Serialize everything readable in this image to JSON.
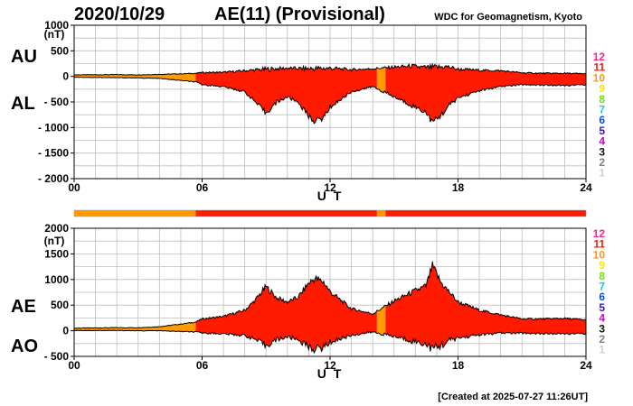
{
  "header": {
    "date": "2020/10/29",
    "title": "AE(11) (Provisional)",
    "source": "WDC for Geomagnetism, Kyoto"
  },
  "footer": {
    "created": "[Created at 2025-07-27 11:26UT]"
  },
  "colors": {
    "fill_main": "#ff2a10",
    "outline": "#000000",
    "grid": "#bdbdbd"
  },
  "station_legend": [
    {
      "label": "12",
      "color": "#ff1f8f"
    },
    {
      "label": "11",
      "color": "#ff1a00"
    },
    {
      "label": "10",
      "color": "#ff9a00"
    },
    {
      "label": "9",
      "color": "#ffe800"
    },
    {
      "label": "8",
      "color": "#6ee800"
    },
    {
      "label": "7",
      "color": "#00d4ee"
    },
    {
      "label": "6",
      "color": "#0050ff"
    },
    {
      "label": "5",
      "color": "#3a10c8"
    },
    {
      "label": "4",
      "color": "#cc00cc"
    },
    {
      "label": "3",
      "color": "#111111"
    },
    {
      "label": "2",
      "color": "#808080"
    },
    {
      "label": "1",
      "color": "#d0d0d0"
    }
  ],
  "chart_data": [
    {
      "type": "area",
      "name": "AU/AL",
      "series_labels": [
        "AU",
        "AL"
      ],
      "ylabel_unit": "(nT)",
      "xlabel": "U T",
      "x_range": [
        0,
        24
      ],
      "ylim": [
        -2000,
        1000
      ],
      "y_ticks": [
        1000,
        500,
        0,
        -500,
        -1000,
        -1500,
        -2000
      ],
      "y_tick_labels": [
        "1000",
        "500",
        "0",
        "- 500",
        "- 1000",
        "- 1500",
        "- 2000"
      ],
      "x_ticks": [
        0,
        6,
        12,
        18,
        24
      ],
      "x_tick_labels": [
        "00",
        "06",
        "12",
        "18",
        "24"
      ],
      "AU": [
        [
          0,
          30
        ],
        [
          1,
          32
        ],
        [
          2,
          35
        ],
        [
          3,
          30
        ],
        [
          4,
          40
        ],
        [
          5,
          50
        ],
        [
          5.7,
          60
        ],
        [
          6,
          75
        ],
        [
          7,
          80
        ],
        [
          8,
          110
        ],
        [
          9,
          140
        ],
        [
          10,
          160
        ],
        [
          11,
          150
        ],
        [
          12,
          160
        ],
        [
          13,
          130
        ],
        [
          14,
          150
        ],
        [
          15,
          180
        ],
        [
          15.8,
          200
        ],
        [
          16.5,
          170
        ],
        [
          17,
          180
        ],
        [
          17.5,
          190
        ],
        [
          18,
          140
        ],
        [
          19,
          120
        ],
        [
          20,
          110
        ],
        [
          21,
          70
        ],
        [
          22,
          60
        ],
        [
          23,
          60
        ],
        [
          24,
          50
        ]
      ],
      "AL": [
        [
          0,
          -15
        ],
        [
          1,
          -20
        ],
        [
          2,
          -25
        ],
        [
          3,
          -30
        ],
        [
          4,
          -40
        ],
        [
          5,
          -80
        ],
        [
          5.7,
          -110
        ],
        [
          6,
          -160
        ],
        [
          7,
          -200
        ],
        [
          8,
          -300
        ],
        [
          8.5,
          -500
        ],
        [
          9,
          -720
        ],
        [
          9.5,
          -500
        ],
        [
          10,
          -400
        ],
        [
          10.5,
          -500
        ],
        [
          11,
          -780
        ],
        [
          11.3,
          -880
        ],
        [
          11.7,
          -800
        ],
        [
          12,
          -600
        ],
        [
          13,
          -300
        ],
        [
          14,
          -200
        ],
        [
          15,
          -400
        ],
        [
          16,
          -600
        ],
        [
          16.5,
          -700
        ],
        [
          16.8,
          -900
        ],
        [
          17.2,
          -760
        ],
        [
          17.6,
          -560
        ],
        [
          18,
          -420
        ],
        [
          19,
          -280
        ],
        [
          20,
          -200
        ],
        [
          21,
          -160
        ],
        [
          22,
          -170
        ],
        [
          23,
          -180
        ],
        [
          24,
          -160
        ]
      ],
      "station_count_bands": [
        {
          "start": 0,
          "end": 5.7,
          "count": 10
        },
        {
          "start": 5.7,
          "end": 14.2,
          "count": 11
        },
        {
          "start": 14.2,
          "end": 14.6,
          "count": 10
        },
        {
          "start": 14.6,
          "end": 24,
          "count": 11
        }
      ]
    },
    {
      "type": "area",
      "name": "AE/AO",
      "series_labels": [
        "AE",
        "AO"
      ],
      "ylabel_unit": "(nT)",
      "xlabel": "U T",
      "x_range": [
        0,
        24
      ],
      "ylim": [
        -500,
        2000
      ],
      "y_ticks": [
        2000,
        1500,
        1000,
        500,
        0,
        -500
      ],
      "y_tick_labels": [
        "2000",
        "1500",
        "1000",
        "500",
        "0",
        "- 500"
      ],
      "x_ticks": [
        0,
        6,
        12,
        18,
        24
      ],
      "x_tick_labels": [
        "00",
        "06",
        "12",
        "18",
        "24"
      ],
      "AE": [
        [
          0,
          50
        ],
        [
          1,
          55
        ],
        [
          2,
          60
        ],
        [
          3,
          60
        ],
        [
          4,
          80
        ],
        [
          5,
          130
        ],
        [
          5.7,
          170
        ],
        [
          6,
          230
        ],
        [
          7,
          280
        ],
        [
          8,
          400
        ],
        [
          8.5,
          600
        ],
        [
          9,
          860
        ],
        [
          9.5,
          640
        ],
        [
          10,
          560
        ],
        [
          10.5,
          650
        ],
        [
          11,
          930
        ],
        [
          11.3,
          1020
        ],
        [
          11.7,
          950
        ],
        [
          12,
          760
        ],
        [
          13,
          430
        ],
        [
          14,
          330
        ],
        [
          15,
          580
        ],
        [
          16,
          780
        ],
        [
          16.5,
          870
        ],
        [
          16.8,
          1260
        ],
        [
          17.2,
          940
        ],
        [
          17.6,
          750
        ],
        [
          18,
          560
        ],
        [
          19,
          400
        ],
        [
          20,
          310
        ],
        [
          21,
          230
        ],
        [
          22,
          230
        ],
        [
          23,
          240
        ],
        [
          24,
          210
        ]
      ],
      "AO": [
        [
          0,
          8
        ],
        [
          1,
          5
        ],
        [
          2,
          5
        ],
        [
          3,
          0
        ],
        [
          4,
          0
        ],
        [
          5,
          -15
        ],
        [
          5.7,
          -25
        ],
        [
          6,
          -40
        ],
        [
          7,
          -60
        ],
        [
          8,
          -90
        ],
        [
          8.5,
          -170
        ],
        [
          9,
          -290
        ],
        [
          9.5,
          -170
        ],
        [
          10,
          -120
        ],
        [
          10.5,
          -170
        ],
        [
          11,
          -310
        ],
        [
          11.3,
          -360
        ],
        [
          11.7,
          -320
        ],
        [
          12,
          -220
        ],
        [
          13,
          -85
        ],
        [
          14,
          -25
        ],
        [
          15,
          -110
        ],
        [
          16,
          -210
        ],
        [
          16.5,
          -260
        ],
        [
          16.8,
          -350
        ],
        [
          17.2,
          -290
        ],
        [
          17.6,
          -185
        ],
        [
          18,
          -140
        ],
        [
          19,
          -80
        ],
        [
          20,
          -45
        ],
        [
          21,
          -45
        ],
        [
          22,
          -55
        ],
        [
          23,
          -60
        ],
        [
          24,
          -55
        ]
      ],
      "station_count_bands": [
        {
          "start": 0,
          "end": 5.7,
          "count": 10
        },
        {
          "start": 5.7,
          "end": 14.2,
          "count": 11
        },
        {
          "start": 14.2,
          "end": 14.6,
          "count": 10
        },
        {
          "start": 14.6,
          "end": 24,
          "count": 11
        }
      ]
    }
  ]
}
